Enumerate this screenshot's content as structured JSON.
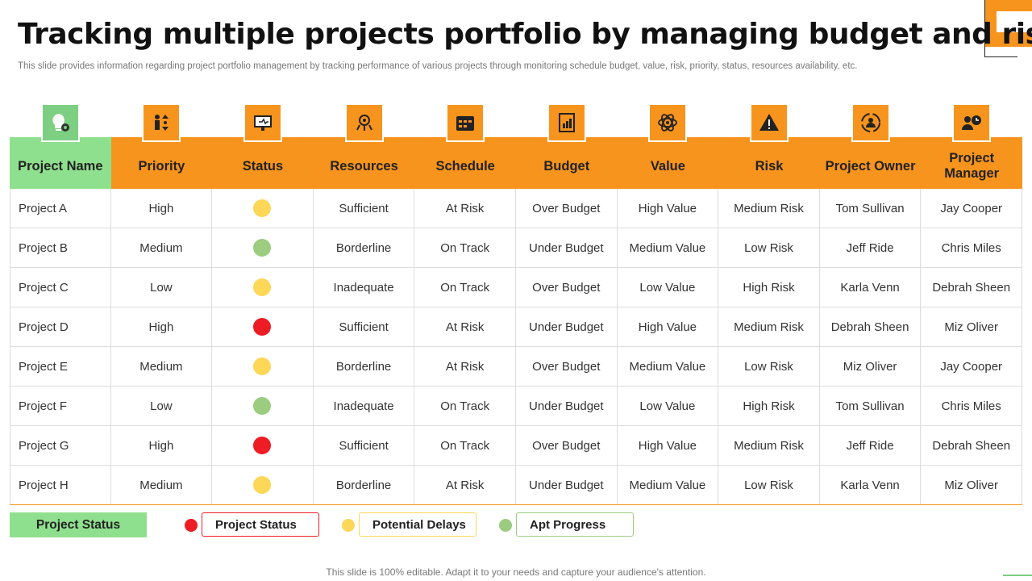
{
  "title": "Tracking multiple projects portfolio by managing budget and risk",
  "subtitle": "This slide provides information regarding project portfolio management by tracking performance of various projects through monitoring schedule budget, value, risk, priority, status, resources availability, etc.",
  "colors": {
    "accent": "#f7941d",
    "green_header": "#8fe08e",
    "status_red": "#ee1c25",
    "status_yellow": "#fcd758",
    "status_green": "#9ccc7f"
  },
  "table": {
    "headers": [
      {
        "label": "Project Name",
        "icon": "lightbulb-gear-icon"
      },
      {
        "label": "Priority",
        "icon": "priority-people-icon"
      },
      {
        "label": "Status",
        "icon": "presentation-screen-icon"
      },
      {
        "label": "Resources",
        "icon": "network-resources-icon"
      },
      {
        "label": "Schedule",
        "icon": "calendar-icon"
      },
      {
        "label": "Budget",
        "icon": "budget-chart-icon"
      },
      {
        "label": "Value",
        "icon": "atom-value-icon"
      },
      {
        "label": "Risk",
        "icon": "warning-icon"
      },
      {
        "label": "Project Owner",
        "icon": "owner-cycle-icon"
      },
      {
        "label": "Project Manager",
        "icon": "manager-clock-icon"
      }
    ],
    "rows": [
      {
        "name": "Project A",
        "priority": "High",
        "status": "yellow",
        "resources": "Sufficient",
        "schedule": "At Risk",
        "budget": "Over Budget",
        "value": "High Value",
        "risk": "Medium Risk",
        "owner": "Tom Sullivan",
        "manager": "Jay Cooper"
      },
      {
        "name": "Project B",
        "priority": "Medium",
        "status": "green",
        "resources": "Borderline",
        "schedule": "On Track",
        "budget": "Under Budget",
        "value": "Medium Value",
        "risk": "Low Risk",
        "owner": "Jeff Ride",
        "manager": "Chris Miles"
      },
      {
        "name": "Project C",
        "priority": "Low",
        "status": "yellow",
        "resources": "Inadequate",
        "schedule": "On Track",
        "budget": "Over Budget",
        "value": "Low Value",
        "risk": "High Risk",
        "owner": "Karla Venn",
        "manager": "Debrah Sheen"
      },
      {
        "name": "Project D",
        "priority": "High",
        "status": "red",
        "resources": "Sufficient",
        "schedule": "At Risk",
        "budget": "Under Budget",
        "value": "High Value",
        "risk": "Medium Risk",
        "owner": "Debrah Sheen",
        "manager": "Miz Oliver"
      },
      {
        "name": "Project E",
        "priority": "Medium",
        "status": "yellow",
        "resources": "Borderline",
        "schedule": "At Risk",
        "budget": "Over Budget",
        "value": "Medium Value",
        "risk": "Low Risk",
        "owner": "Miz Oliver",
        "manager": "Jay Cooper"
      },
      {
        "name": "Project F",
        "priority": "Low",
        "status": "green",
        "resources": "Inadequate",
        "schedule": "On Track",
        "budget": "Under Budget",
        "value": "Low Value",
        "risk": "High Risk",
        "owner": "Tom Sullivan",
        "manager": "Chris Miles"
      },
      {
        "name": "Project G",
        "priority": "High",
        "status": "red",
        "resources": "Sufficient",
        "schedule": "On Track",
        "budget": "Over Budget",
        "value": "High Value",
        "risk": "Medium Risk",
        "owner": "Jeff Ride",
        "manager": "Debrah Sheen"
      },
      {
        "name": "Project H",
        "priority": "Medium",
        "status": "yellow",
        "resources": "Borderline",
        "schedule": "At Risk",
        "budget": "Under Budget",
        "value": "Medium Value",
        "risk": "Low Risk",
        "owner": "Karla Venn",
        "manager": "Miz Oliver"
      }
    ]
  },
  "legend": {
    "title": "Project Status",
    "items": [
      {
        "label": "Project Status",
        "color": "red"
      },
      {
        "label": "Potential Delays",
        "color": "yellow"
      },
      {
        "label": "Apt Progress",
        "color": "green"
      }
    ]
  },
  "footer": "This slide is 100% editable. Adapt it to your needs and capture your audience's attention."
}
